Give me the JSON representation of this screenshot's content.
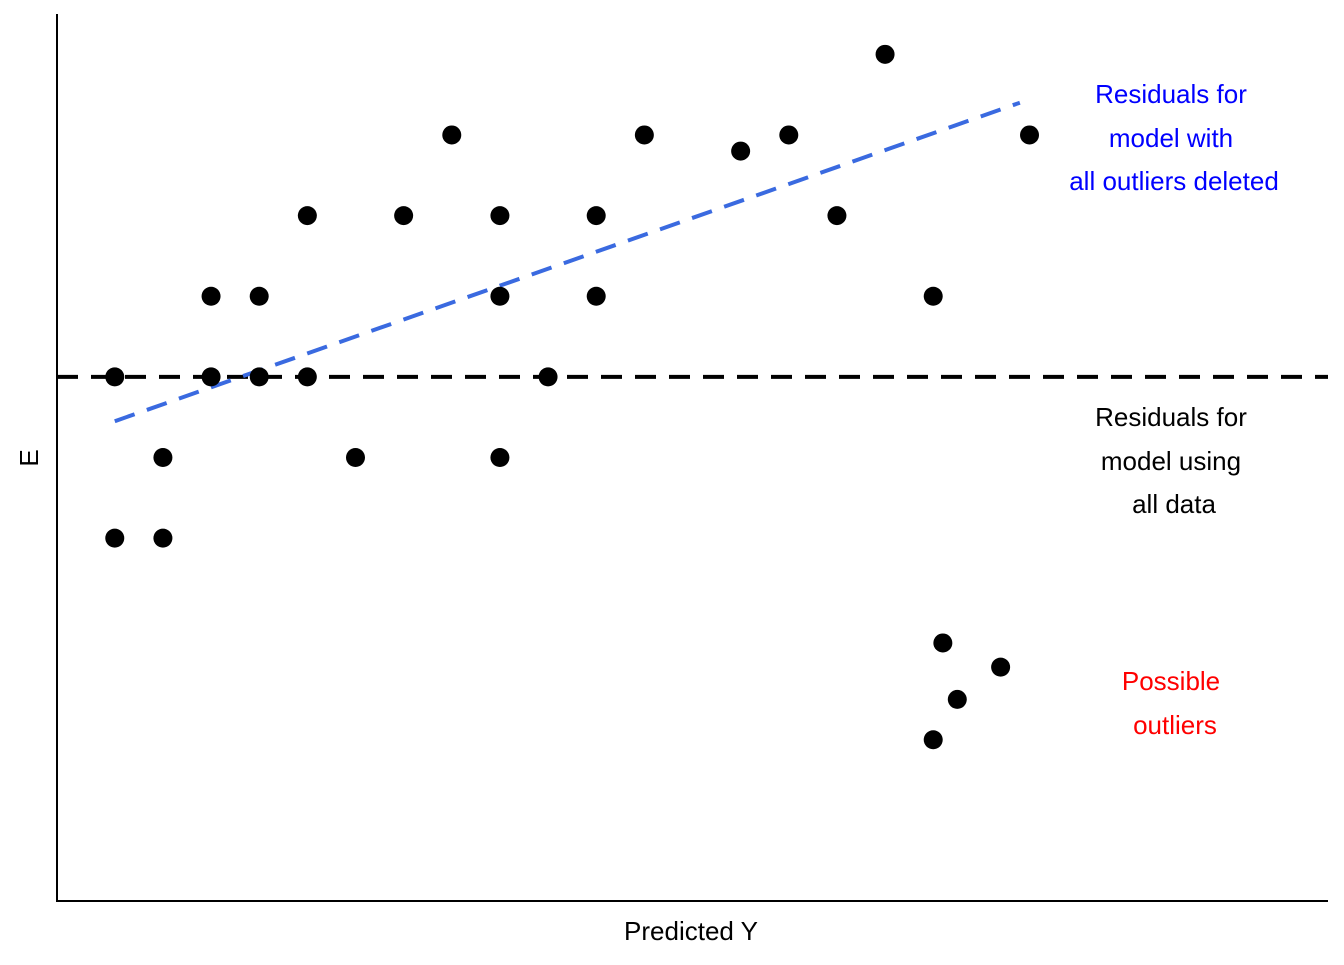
{
  "chart_data": {
    "type": "scatter",
    "title": "",
    "xlabel": "Predicted Y",
    "ylabel": "E",
    "xlim": [
      0,
      26.4
    ],
    "ylim": [
      -6.5,
      4.5
    ],
    "grid": false,
    "points": [
      {
        "x": 1.2,
        "y": 0
      },
      {
        "x": 1.2,
        "y": -2
      },
      {
        "x": 2.2,
        "y": -1
      },
      {
        "x": 2.2,
        "y": -2
      },
      {
        "x": 3.2,
        "y": 1
      },
      {
        "x": 3.2,
        "y": 0
      },
      {
        "x": 4.2,
        "y": 1
      },
      {
        "x": 4.2,
        "y": 0
      },
      {
        "x": 5.2,
        "y": 2
      },
      {
        "x": 5.2,
        "y": 0
      },
      {
        "x": 6.2,
        "y": -1
      },
      {
        "x": 7.2,
        "y": 2
      },
      {
        "x": 8.2,
        "y": 3
      },
      {
        "x": 9.2,
        "y": 2
      },
      {
        "x": 9.2,
        "y": 1
      },
      {
        "x": 9.2,
        "y": -1
      },
      {
        "x": 10.2,
        "y": 0
      },
      {
        "x": 11.2,
        "y": 2
      },
      {
        "x": 11.2,
        "y": 1
      },
      {
        "x": 12.2,
        "y": 3
      },
      {
        "x": 14.2,
        "y": 2.8
      },
      {
        "x": 15.2,
        "y": 3
      },
      {
        "x": 16.2,
        "y": 2
      },
      {
        "x": 17.2,
        "y": 4
      },
      {
        "x": 18.2,
        "y": 1
      },
      {
        "x": 20.2,
        "y": 3
      }
    ],
    "outlier_points": [
      {
        "x": 18.4,
        "y": -3.3
      },
      {
        "x": 18.7,
        "y": -4
      },
      {
        "x": 19.6,
        "y": -3.6
      },
      {
        "x": 18.2,
        "y": -4.5
      }
    ],
    "reference_lines": [
      {
        "name": "Residuals for model using all data",
        "color": "#000000",
        "from": [
          0,
          0
        ],
        "to": [
          26.4,
          0
        ]
      },
      {
        "name": "Residuals for model with all outliers deleted",
        "color": "#3a6ae0",
        "from": [
          1.2,
          -0.55
        ],
        "to": [
          20.0,
          3.4
        ]
      }
    ],
    "annotations": [
      {
        "lines": [
          "Residuals for",
          "model with",
          "all outliers deleted"
        ],
        "color": "#0000ff"
      },
      {
        "lines": [
          "Residuals for",
          "model using",
          "all data"
        ],
        "color": "#000000"
      },
      {
        "lines": [
          "Possible",
          "outliers"
        ],
        "color": "#ff0000"
      }
    ]
  }
}
